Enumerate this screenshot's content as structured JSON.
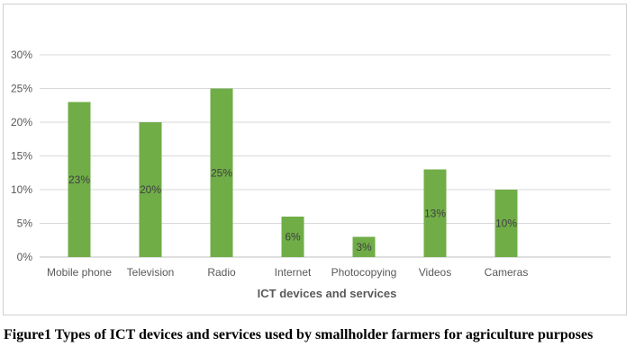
{
  "chart_data": {
    "type": "bar",
    "categories": [
      "Mobile phone",
      "Television",
      "Radio",
      "Internet",
      "Photocopying",
      "Videos",
      "Cameras"
    ],
    "values": [
      23,
      20,
      25,
      6,
      3,
      13,
      10
    ],
    "data_labels": [
      "23%",
      "20%",
      "25%",
      "6%",
      "3%",
      "13%",
      "10%"
    ],
    "xlabel": "ICT devices and services",
    "ylabel": "",
    "ylim": [
      0,
      30
    ],
    "yticks": [
      "0%",
      "5%",
      "10%",
      "15%",
      "20%",
      "25%",
      "30%"
    ],
    "grid": true,
    "legend": "none",
    "bar_color": "#70ad47"
  },
  "caption": "Figure1 Types of ICT devices and services used by smallholder farmers for agriculture purposes"
}
